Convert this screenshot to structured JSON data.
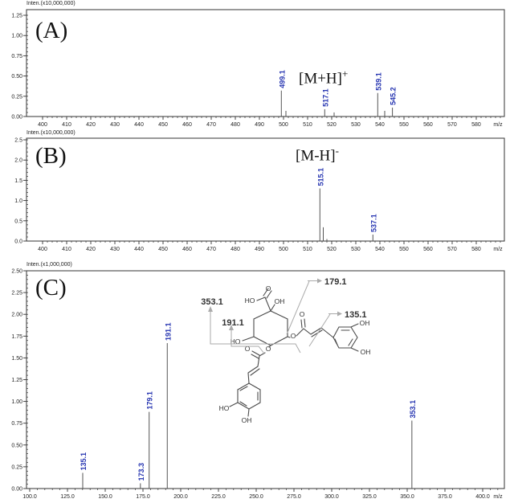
{
  "figure": {
    "panels": [
      {
        "tag": "(A)",
        "y_axis_label": "Inten.(x10,000,000)",
        "annotation_main": "[M+H]",
        "annotation_sup": "+",
        "x_unit": "m/z"
      },
      {
        "tag": "(B)",
        "y_axis_label": "Inten.(x10,000,000)",
        "annotation_main": "[M-H]",
        "annotation_sup": "-",
        "x_unit": "m/z"
      },
      {
        "tag": "(C)",
        "y_axis_label": "Inten.(x1,000,000)",
        "annotation_main": "",
        "annotation_sup": "",
        "x_unit": "m/z"
      }
    ]
  },
  "chart_data": [
    {
      "type": "bar",
      "panel": "A",
      "title": "positive ion mass spectrum",
      "xlabel": "m/z",
      "ylabel": "Inten.(x10,000,000)",
      "xlim": [
        393.33,
        591.67
      ],
      "ylim": [
        0,
        1.25
      ],
      "x_minor_step": 2,
      "y_minor_step": 0.05,
      "xtick_labels": [
        "400",
        "410",
        "420",
        "430",
        "440",
        "450",
        "460",
        "470",
        "480",
        "490",
        "500",
        "510",
        "520",
        "530",
        "540",
        "550",
        "560",
        "570",
        "580"
      ],
      "ytick_labels": [
        "0.00",
        "0.25",
        "0.50",
        "0.75",
        "1.00",
        "1.25"
      ],
      "annotation": "[M+H]+",
      "peaks": [
        {
          "mz": 499.1,
          "intensity": 0.32,
          "label": "499.1"
        },
        {
          "mz": 501.0,
          "intensity": 0.07,
          "label": ""
        },
        {
          "mz": 517.1,
          "intensity": 0.09,
          "label": "517.1"
        },
        {
          "mz": 521.0,
          "intensity": 0.05,
          "label": ""
        },
        {
          "mz": 539.1,
          "intensity": 0.29,
          "label": "539.1"
        },
        {
          "mz": 542.0,
          "intensity": 0.07,
          "label": ""
        },
        {
          "mz": 545.2,
          "intensity": 0.11,
          "label": "545.2"
        }
      ]
    },
    {
      "type": "bar",
      "panel": "B",
      "title": "negative ion mass spectrum",
      "xlabel": "m/z",
      "ylabel": "Inten.(x10,000,000)",
      "xlim": [
        393.33,
        591.67
      ],
      "ylim": [
        0,
        2.5
      ],
      "x_minor_step": 2,
      "y_minor_step": 0.1,
      "xtick_labels": [
        "400",
        "410",
        "420",
        "430",
        "440",
        "450",
        "460",
        "470",
        "480",
        "490",
        "500",
        "510",
        "520",
        "530",
        "540",
        "550",
        "560",
        "570",
        "580"
      ],
      "ytick_labels": [
        "0.0",
        "0.5",
        "1.0",
        "1.5",
        "2.0",
        "2.5"
      ],
      "annotation": "[M-H]-",
      "peaks": [
        {
          "mz": 515.1,
          "intensity": 1.3,
          "label": "515.1"
        },
        {
          "mz": 516.5,
          "intensity": 0.34,
          "label": ""
        },
        {
          "mz": 518.0,
          "intensity": 0.05,
          "label": ""
        },
        {
          "mz": 537.1,
          "intensity": 0.16,
          "label": "537.1"
        }
      ]
    },
    {
      "type": "bar",
      "panel": "C",
      "title": "MS/MS fragment spectrum",
      "xlabel": "m/z",
      "ylabel": "Inten.(x1,000,000)",
      "xlim": [
        97.87,
        414.36
      ],
      "ylim": [
        0,
        2.5
      ],
      "x_minor_step": 5,
      "y_minor_step": 0.05,
      "xtick_labels": [
        "100.0",
        "125.0",
        "150.0",
        "175.0",
        "200.0",
        "225.0",
        "250.0",
        "275.0",
        "300.0",
        "325.0",
        "350.0",
        "375.0",
        "400.0"
      ],
      "ytick_labels": [
        "0.00",
        "0.25",
        "0.50",
        "0.75",
        "1.00",
        "1.25",
        "1.50",
        "1.75",
        "2.00",
        "2.25",
        "2.50"
      ],
      "annotation": "",
      "peaks": [
        {
          "mz": 135.1,
          "intensity": 0.18,
          "label": "135.1"
        },
        {
          "mz": 173.3,
          "intensity": 0.06,
          "label": "173.3"
        },
        {
          "mz": 179.1,
          "intensity": 0.88,
          "label": "179.1"
        },
        {
          "mz": 191.1,
          "intensity": 1.67,
          "label": "191.1"
        },
        {
          "mz": 353.1,
          "intensity": 0.78,
          "label": "353.1"
        }
      ]
    }
  ],
  "structure": {
    "atom_labels": [
      "O",
      "HO",
      "OH",
      "HO",
      "O",
      "O",
      "OH",
      "OH",
      "O",
      "O",
      "HO",
      "OH"
    ],
    "fragment_labels": [
      "353.1",
      "191.1",
      "179.1",
      "135.1"
    ]
  },
  "colors": {
    "peak_line": "#555555",
    "label_blue": "#2433b0",
    "axis": "#333333",
    "structure_bond": "#4a4a4a",
    "fragment_line": "#aaaaaa"
  }
}
